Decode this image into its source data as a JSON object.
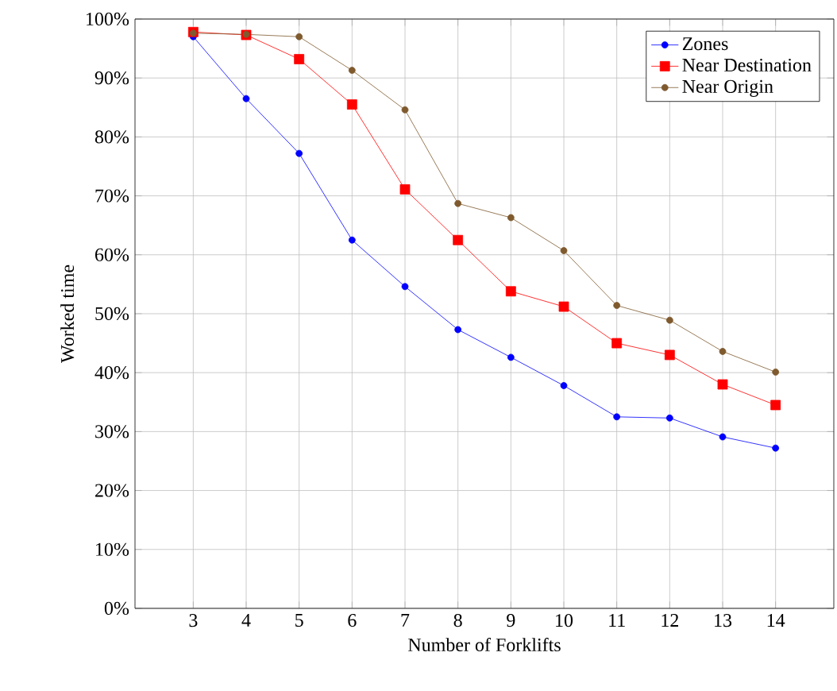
{
  "chart_data": {
    "type": "line",
    "xlabel": "Number of Forklifts",
    "ylabel": "Worked time",
    "x": [
      3,
      4,
      5,
      6,
      7,
      8,
      9,
      10,
      11,
      12,
      13,
      14
    ],
    "series": [
      {
        "name": "Zones",
        "color": "#0000ff",
        "marker": "circle",
        "values": [
          97,
          86.5,
          77.2,
          62.5,
          54.6,
          47.3,
          42.6,
          37.8,
          32.5,
          32.3,
          29.1,
          27.2
        ]
      },
      {
        "name": "Near Destination",
        "color": "#ff0000",
        "marker": "square",
        "values": [
          97.8,
          97.3,
          93.2,
          85.5,
          71.1,
          62.5,
          53.8,
          51.2,
          45,
          43,
          38,
          34.5
        ]
      },
      {
        "name": "Near Origin",
        "color": "#7f5a2e",
        "marker": "circle",
        "values": [
          97.6,
          97.4,
          97,
          91.3,
          84.6,
          68.7,
          66.3,
          60.7,
          51.4,
          48.9,
          43.6,
          40.1
        ]
      }
    ],
    "xlim": [
      1.9,
      15.1
    ],
    "xticks": [
      3,
      4,
      5,
      6,
      7,
      8,
      9,
      10,
      11,
      12,
      13,
      14
    ],
    "ylim": [
      0,
      100
    ],
    "yticks": [
      {
        "value": 0,
        "label": "0%"
      },
      {
        "value": 10,
        "label": "10%"
      },
      {
        "value": 20,
        "label": "20%"
      },
      {
        "value": 30,
        "label": "30%"
      },
      {
        "value": 40,
        "label": "40%"
      },
      {
        "value": 50,
        "label": "50%"
      },
      {
        "value": 60,
        "label": "60%"
      },
      {
        "value": 70,
        "label": "70%"
      },
      {
        "value": 80,
        "label": "80%"
      },
      {
        "value": 90,
        "label": "90%"
      },
      {
        "value": 100,
        "label": "100%"
      }
    ],
    "grid": true,
    "legend": "top right",
    "line_style": "solid"
  }
}
